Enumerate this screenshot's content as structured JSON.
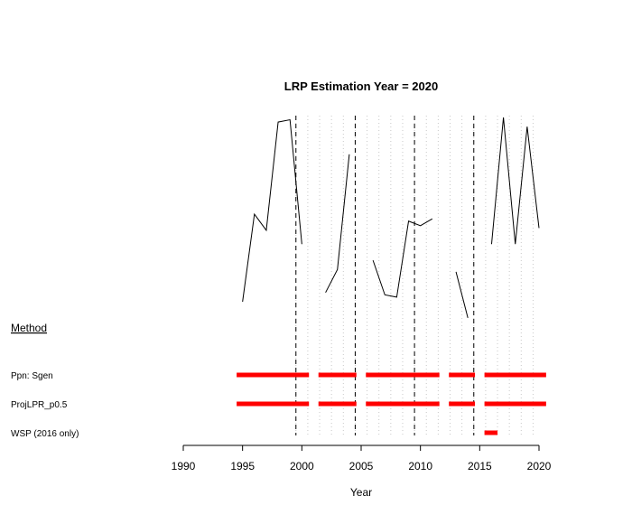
{
  "chart_data": {
    "type": "line",
    "title": "LRP Estimation Year = 2020",
    "xlabel": "Year",
    "ylabel": "",
    "xlim": [
      1990,
      2020
    ],
    "x_ticks": [
      1990,
      1995,
      2000,
      2005,
      2010,
      2015,
      2020
    ],
    "series": [
      {
        "values": [
          {
            "x": 1995,
            "y": 0.2
          },
          {
            "x": 1996,
            "y": 0.58
          },
          {
            "x": 1997,
            "y": 0.51
          },
          {
            "x": 1998,
            "y": 0.98
          },
          {
            "x": 1999,
            "y": 0.99
          },
          {
            "x": 2000,
            "y": 0.45
          },
          {
            "x": 2001,
            "y": null
          },
          {
            "x": 2002,
            "y": 0.24
          },
          {
            "x": 2003,
            "y": 0.34
          },
          {
            "x": 2004,
            "y": 0.84
          },
          {
            "x": 2005,
            "y": null
          },
          {
            "x": 2006,
            "y": 0.38
          },
          {
            "x": 2007,
            "y": 0.23
          },
          {
            "x": 2008,
            "y": 0.22
          },
          {
            "x": 2009,
            "y": 0.55
          },
          {
            "x": 2010,
            "y": 0.53
          },
          {
            "x": 2011,
            "y": 0.56
          },
          {
            "x": 2012,
            "y": null
          },
          {
            "x": 2013,
            "y": 0.33
          },
          {
            "x": 2014,
            "y": 0.13
          },
          {
            "x": 2015,
            "y": null
          },
          {
            "x": 2016,
            "y": 0.45
          },
          {
            "x": 2017,
            "y": 1.0
          },
          {
            "x": 2018,
            "y": 0.45
          },
          {
            "x": 2019,
            "y": 0.96
          },
          {
            "x": 2020,
            "y": 0.52
          }
        ]
      }
    ],
    "vertical_dashed_lines": [
      1999.5,
      2004.5,
      2009.5,
      2014.5
    ],
    "vertical_dotted_grid": [
      1999.5,
      2000.5,
      2001.5,
      2002.5,
      2003.5,
      2004.5,
      2005.5,
      2006.5,
      2007.5,
      2008.5,
      2009.5,
      2010.5,
      2011.5,
      2012.5,
      2013.5,
      2014.5,
      2015.5,
      2016.5,
      2017.5,
      2018.5,
      2019.5
    ],
    "methods_header": "Method",
    "methods": [
      {
        "label": "Ppn: Sgen",
        "segments": [
          [
            1994.5,
            2000.6
          ],
          [
            2001.4,
            2004.6
          ],
          [
            2005.4,
            2011.6
          ],
          [
            2012.4,
            2014.6
          ],
          [
            2015.4,
            2020.6
          ]
        ]
      },
      {
        "label": "ProjLPR_p0.5",
        "segments": [
          [
            1994.5,
            2000.6
          ],
          [
            2001.4,
            2004.6
          ],
          [
            2005.4,
            2011.6
          ],
          [
            2012.4,
            2014.6
          ],
          [
            2015.4,
            2020.6
          ]
        ]
      },
      {
        "label": "WSP (2016 only)",
        "segments": [
          [
            2015.4,
            2016.5
          ]
        ]
      }
    ],
    "colors": {
      "line": "#000000",
      "bars": "#ff0000",
      "dashed": "#000000",
      "grid": "#c8c8c8"
    }
  }
}
